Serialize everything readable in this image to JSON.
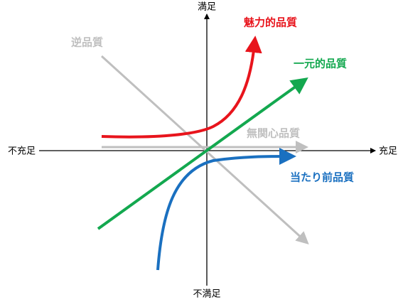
{
  "axes": {
    "top": "満足",
    "bottom": "不満足",
    "right": "充足",
    "left": "不充足"
  },
  "curves": [
    {
      "label": "魅力的品質"
    },
    {
      "label": "一元的品質"
    },
    {
      "label": "当たり前品質"
    },
    {
      "label": "無関心品質"
    },
    {
      "label": "逆品質"
    }
  ]
}
